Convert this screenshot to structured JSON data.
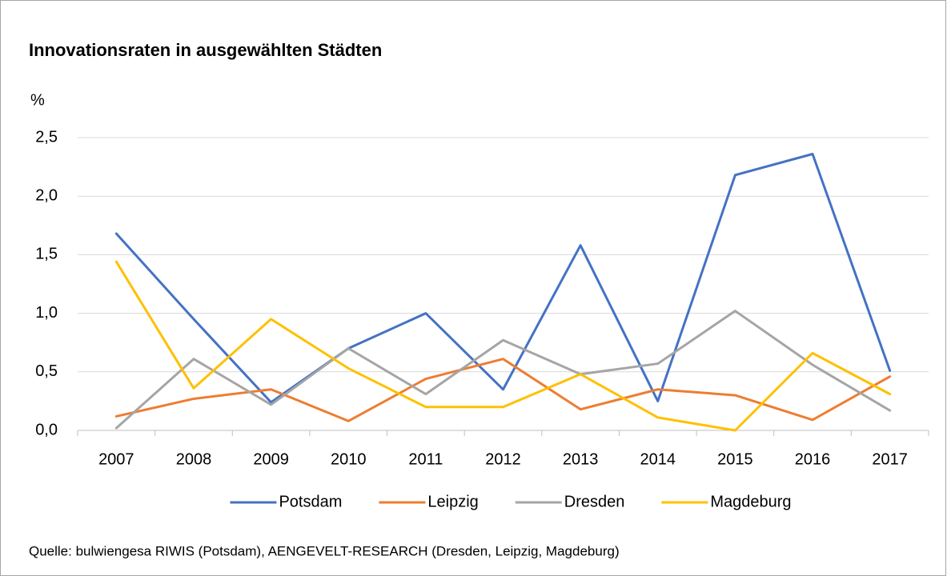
{
  "chart_data": {
    "type": "line",
    "title": "Innovationsraten in ausgewählten Städten",
    "y_label": "%",
    "source": "Quelle: bulwiengesa RIWIS (Potsdam), AENGEVELT-RESEARCH (Dresden, Leipzig, Magdeburg)",
    "categories": [
      "2007",
      "2008",
      "2009",
      "2010",
      "2011",
      "2012",
      "2013",
      "2014",
      "2015",
      "2016",
      "2017"
    ],
    "series": [
      {
        "name": "Potsdam",
        "color": "#4472c4",
        "values": [
          1.68,
          0.95,
          0.24,
          0.7,
          1.0,
          0.35,
          1.58,
          0.25,
          2.18,
          2.36,
          0.51
        ]
      },
      {
        "name": "Leipzig",
        "color": "#ed7d31",
        "values": [
          0.12,
          0.27,
          0.35,
          0.08,
          0.44,
          0.61,
          0.18,
          0.35,
          0.3,
          0.09,
          0.46
        ]
      },
      {
        "name": "Dresden",
        "color": "#a5a5a5",
        "values": [
          0.02,
          0.61,
          0.22,
          0.7,
          0.31,
          0.77,
          0.48,
          0.57,
          1.02,
          0.56,
          0.17
        ]
      },
      {
        "name": "Magdeburg",
        "color": "#ffc000",
        "values": [
          1.44,
          0.36,
          0.95,
          0.53,
          0.2,
          0.2,
          0.48,
          0.11,
          0.0,
          0.66,
          0.31
        ]
      }
    ],
    "ylim": [
      0,
      2.5
    ],
    "yticks": [
      {
        "value": 0,
        "label": "0,0"
      },
      {
        "value": 0.5,
        "label": "0,5"
      },
      {
        "value": 1,
        "label": "1,0"
      },
      {
        "value": 1.5,
        "label": "1,5"
      },
      {
        "value": 2,
        "label": "2,0"
      },
      {
        "value": 2.5,
        "label": "2,5"
      }
    ],
    "grid": true,
    "legend": "bottom"
  }
}
